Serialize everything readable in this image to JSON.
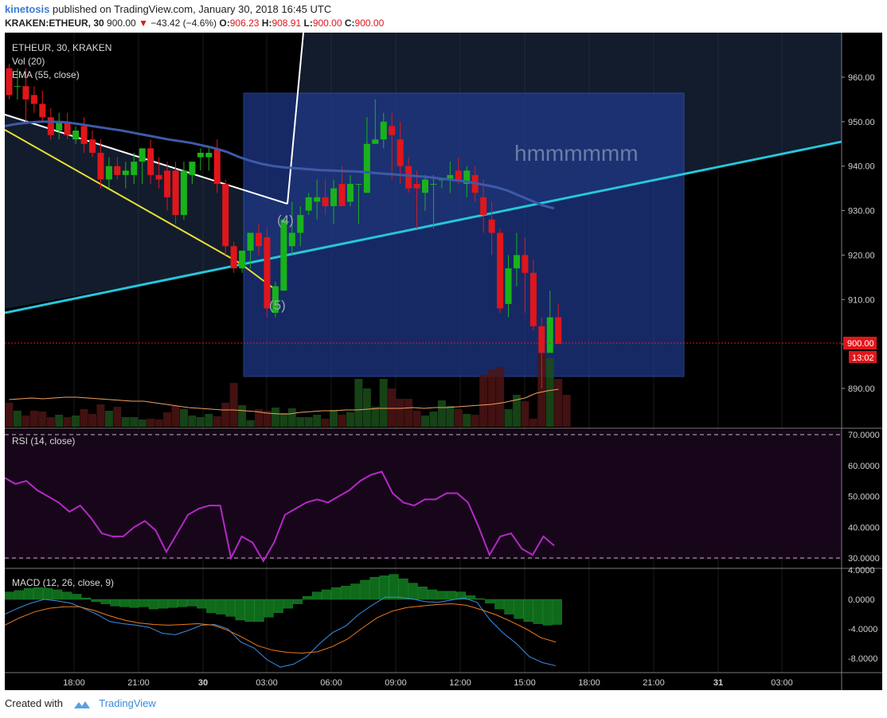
{
  "header": {
    "author": "kinetosis",
    "published": "published on TradingView.com, January 30, 2018 16:45 UTC",
    "symbol": "KRAKEN:ETHEUR, 30",
    "last": "900.00",
    "change": "−43.42 (−4.6%)",
    "o_label": "O:",
    "o_value": "906.23",
    "h_label": "H:",
    "h_value": "908.91",
    "l_label": "L:",
    "l_value": "900.00",
    "c_label": "C:",
    "c_value": "900.00"
  },
  "legend": {
    "main": "ETHEUR, 30, KRAKEN",
    "vol": "Vol (20)",
    "ema": "EMA (55, close)",
    "rsi": "RSI (14, close)",
    "macd": "MACD (12, 26, close, 9)"
  },
  "annotations": {
    "note": "hmmmmmm",
    "wave4": "(4)",
    "wave5": "(5)"
  },
  "price_tag": "900.00",
  "countdown": "13:02",
  "footer": {
    "created": "Created with",
    "brand": "TradingView"
  },
  "colors": {
    "up": "#19b21b",
    "down": "#e0161b",
    "ema": "#3e5aa8",
    "rsi": "#b429c6",
    "macd": "#3a8ee6",
    "signal": "#f07a1e",
    "trend": "#26c6da",
    "yellow": "#e8e030",
    "box": "#1f3a8c",
    "bg": "#000000"
  },
  "chart_data": [
    {
      "type": "candlestick",
      "title": "ETHEUR, 30, KRAKEN",
      "ylim": [
        880,
        967
      ],
      "y_ticks": [
        890,
        900,
        910,
        920,
        930,
        940,
        950,
        960
      ],
      "x_ticks": [
        "18:00",
        "21:00",
        "30",
        "03:00",
        "06:00",
        "09:00",
        "12:00",
        "15:00",
        "18:00",
        "21:00",
        "31",
        "03:00"
      ],
      "candles": [
        [
          962,
          963,
          955,
          956
        ],
        [
          958,
          962,
          955,
          958
        ],
        [
          958,
          962,
          950,
          955
        ],
        [
          956,
          958,
          952,
          954
        ],
        [
          954,
          957,
          950,
          951
        ],
        [
          951,
          953,
          946,
          947
        ],
        [
          948,
          952,
          946,
          950
        ],
        [
          950,
          952,
          946,
          947
        ],
        [
          946,
          949,
          945,
          948
        ],
        [
          949,
          951,
          943,
          945
        ],
        [
          946,
          948,
          942,
          943
        ],
        [
          943,
          946,
          935,
          937
        ],
        [
          937,
          942,
          935,
          940
        ],
        [
          940,
          942,
          937,
          938
        ],
        [
          938,
          941,
          935,
          939
        ],
        [
          938,
          943,
          936,
          941
        ],
        [
          941,
          944,
          936,
          944
        ],
        [
          944,
          946,
          936,
          938
        ],
        [
          938,
          942,
          935,
          937
        ],
        [
          939,
          941,
          930,
          933
        ],
        [
          939,
          941,
          927,
          929
        ],
        [
          929,
          941,
          928,
          939
        ],
        [
          938,
          941,
          936,
          941
        ],
        [
          942,
          944,
          939,
          943
        ],
        [
          942,
          944,
          939,
          943
        ],
        [
          944,
          946,
          934,
          936
        ],
        [
          936,
          937,
          920,
          922
        ],
        [
          922,
          923,
          916,
          917
        ],
        [
          917,
          921,
          916,
          921
        ],
        [
          921,
          925,
          917,
          925
        ],
        [
          925,
          927,
          920,
          922
        ],
        [
          924,
          926,
          906,
          908
        ],
        [
          907,
          914,
          906,
          913
        ],
        [
          912,
          928,
          912,
          928
        ],
        [
          922,
          932,
          920,
          925
        ],
        [
          925,
          931,
          922,
          929
        ],
        [
          930,
          934,
          929,
          933
        ],
        [
          932,
          937,
          928,
          933
        ],
        [
          933,
          937,
          929,
          931
        ],
        [
          931,
          937,
          927,
          935
        ],
        [
          936,
          940,
          931,
          931
        ],
        [
          932,
          938,
          931,
          936
        ],
        [
          936,
          936,
          927,
          936
        ],
        [
          934,
          951,
          934,
          945
        ],
        [
          945,
          955,
          945,
          946
        ],
        [
          946,
          952,
          944,
          950
        ],
        [
          949,
          952,
          937,
          947
        ],
        [
          946,
          950,
          936,
          940
        ],
        [
          940,
          942,
          934,
          935
        ],
        [
          936,
          939,
          926,
          935
        ],
        [
          934,
          938,
          930,
          937
        ],
        [
          936,
          938,
          926,
          936
        ],
        [
          937,
          937,
          935,
          937
        ],
        [
          937,
          941,
          934,
          938
        ],
        [
          939,
          942,
          936,
          937
        ],
        [
          936,
          940,
          933,
          939
        ],
        [
          938,
          940,
          932,
          934
        ],
        [
          933,
          937,
          925,
          929
        ],
        [
          928,
          932,
          920,
          925
        ],
        [
          925,
          926,
          907,
          908
        ],
        [
          909,
          920,
          906,
          917
        ],
        [
          917,
          925,
          913,
          920
        ],
        [
          920,
          924,
          907,
          916
        ],
        [
          916,
          919,
          903,
          904
        ],
        [
          904,
          906,
          890,
          898
        ],
        [
          898,
          912,
          898,
          906
        ],
        [
          906,
          909,
          900,
          900
        ]
      ],
      "ema55": [
        949,
        949.5,
        949.8,
        950,
        950,
        949.9,
        949.6,
        949.2,
        948.8,
        948.4,
        948,
        947.5,
        947,
        946.5,
        946,
        945.6,
        945.2,
        944.6,
        944,
        943.2,
        942.1,
        941.2,
        940.5,
        940,
        939.7,
        939.5,
        939.3,
        939.1,
        939,
        938.9,
        938.8,
        938.6,
        938.4,
        938.2,
        938,
        937.8,
        937.6,
        937.3,
        937,
        936.7,
        936.3,
        935.8,
        935.3,
        934.5,
        933.4,
        932.3,
        931.2,
        930.5
      ],
      "volume": [
        30,
        20,
        14,
        20,
        19,
        12,
        15,
        12,
        14,
        22,
        16,
        28,
        20,
        25,
        12,
        12,
        9,
        10,
        9,
        18,
        26,
        22,
        14,
        12,
        16,
        13,
        30,
        55,
        27,
        8,
        22,
        20,
        24,
        17,
        23,
        12,
        12,
        15,
        10,
        21,
        15,
        18,
        60,
        48,
        25,
        60,
        48,
        35,
        35,
        20,
        14,
        19,
        33,
        26,
        22,
        16,
        15,
        65,
        72,
        75,
        22,
        40,
        32,
        10,
        92,
        86,
        60,
        40
      ],
      "volume_ma": [
        34,
        35,
        36,
        35,
        36,
        37,
        37,
        36,
        35,
        34,
        33,
        32,
        32,
        30,
        28,
        26,
        24,
        23,
        22,
        21,
        21,
        20,
        19,
        17,
        16,
        16,
        18,
        19,
        20,
        20,
        21,
        21,
        22,
        23,
        23,
        23,
        24,
        23,
        24,
        24,
        25,
        26,
        27,
        28,
        30,
        33,
        36,
        42,
        45,
        47
      ]
    },
    {
      "type": "line",
      "title": "RSI (14, close)",
      "ylim": [
        28,
        72
      ],
      "y_ticks": [
        "70.0000",
        "60.0000",
        "50.0000",
        "40.0000",
        "30.0000"
      ],
      "bands": [
        30,
        70
      ],
      "values": [
        56,
        54,
        55,
        52,
        50,
        48,
        45,
        47,
        43,
        38,
        37,
        37,
        40,
        42,
        39,
        32,
        38,
        44,
        46,
        47,
        47,
        30,
        37,
        35,
        29,
        35,
        44,
        46,
        48,
        49,
        48,
        50,
        52,
        55,
        57,
        58,
        51,
        48,
        47,
        49,
        49,
        51,
        51,
        48,
        40,
        31,
        37,
        38,
        33,
        31,
        37,
        34
      ]
    },
    {
      "type": "bar+line",
      "title": "MACD (12, 26, close, 9)",
      "ylim": [
        -10,
        4
      ],
      "y_ticks": [
        "4.0000",
        "0.0000",
        "-4.0000",
        "-8.0000"
      ],
      "histogram": [
        1,
        1.2,
        1.5,
        1.6,
        1.5,
        1.3,
        1,
        0.7,
        0.2,
        -0.3,
        -0.6,
        -0.9,
        -1.0,
        -1.1,
        -1.0,
        -1.3,
        -1.2,
        -1.1,
        -1.0,
        -0.9,
        -1.2,
        -1.8,
        -2.0,
        -2.3,
        -2.8,
        -3.0,
        -3.0,
        -2.4,
        -1.8,
        -1.2,
        -0.6,
        0.4,
        1.0,
        1.3,
        1.6,
        1.8,
        2.1,
        2.6,
        3.0,
        3.2,
        3.4,
        2.8,
        2.2,
        1.7,
        1.3,
        1.1,
        1.1,
        1.0,
        0.5,
        0.1,
        -0.5,
        -1.3,
        -2.0,
        -2.6,
        -3.0,
        -3.3,
        -3.5,
        -3.4
      ],
      "macd": [
        -2,
        -1.2,
        -0.5,
        0,
        -0.2,
        -0.5,
        -1.2,
        -2.0,
        -3.0,
        -3.3,
        -3.5,
        -3.8,
        -4.6,
        -4.8,
        -4.2,
        -3.5,
        -3.4,
        -4.0,
        -5.8,
        -6.6,
        -8.2,
        -9.2,
        -8.8,
        -7.8,
        -6.0,
        -4.5,
        -3.6,
        -2.0,
        -0.8,
        0.3,
        0.3,
        0.1,
        -0.3,
        -0.4,
        -0.1,
        0.2,
        -0.4,
        -2.8,
        -4.6,
        -6.0,
        -7.8,
        -8.6,
        -9.0
      ],
      "signal": [
        -3.5,
        -2.5,
        -1.7,
        -1.2,
        -1.0,
        -1.0,
        -1.5,
        -2.2,
        -2.8,
        -3.2,
        -3.4,
        -3.5,
        -3.4,
        -3.3,
        -3.5,
        -4.2,
        -5.2,
        -6.3,
        -6.9,
        -7.2,
        -7.3,
        -7.1,
        -6.4,
        -5.4,
        -3.9,
        -2.5,
        -1.6,
        -1.1,
        -0.9,
        -0.7,
        -0.6,
        -0.8,
        -1.4,
        -2.1,
        -3.0,
        -4.0,
        -5.2,
        -5.8
      ]
    }
  ]
}
